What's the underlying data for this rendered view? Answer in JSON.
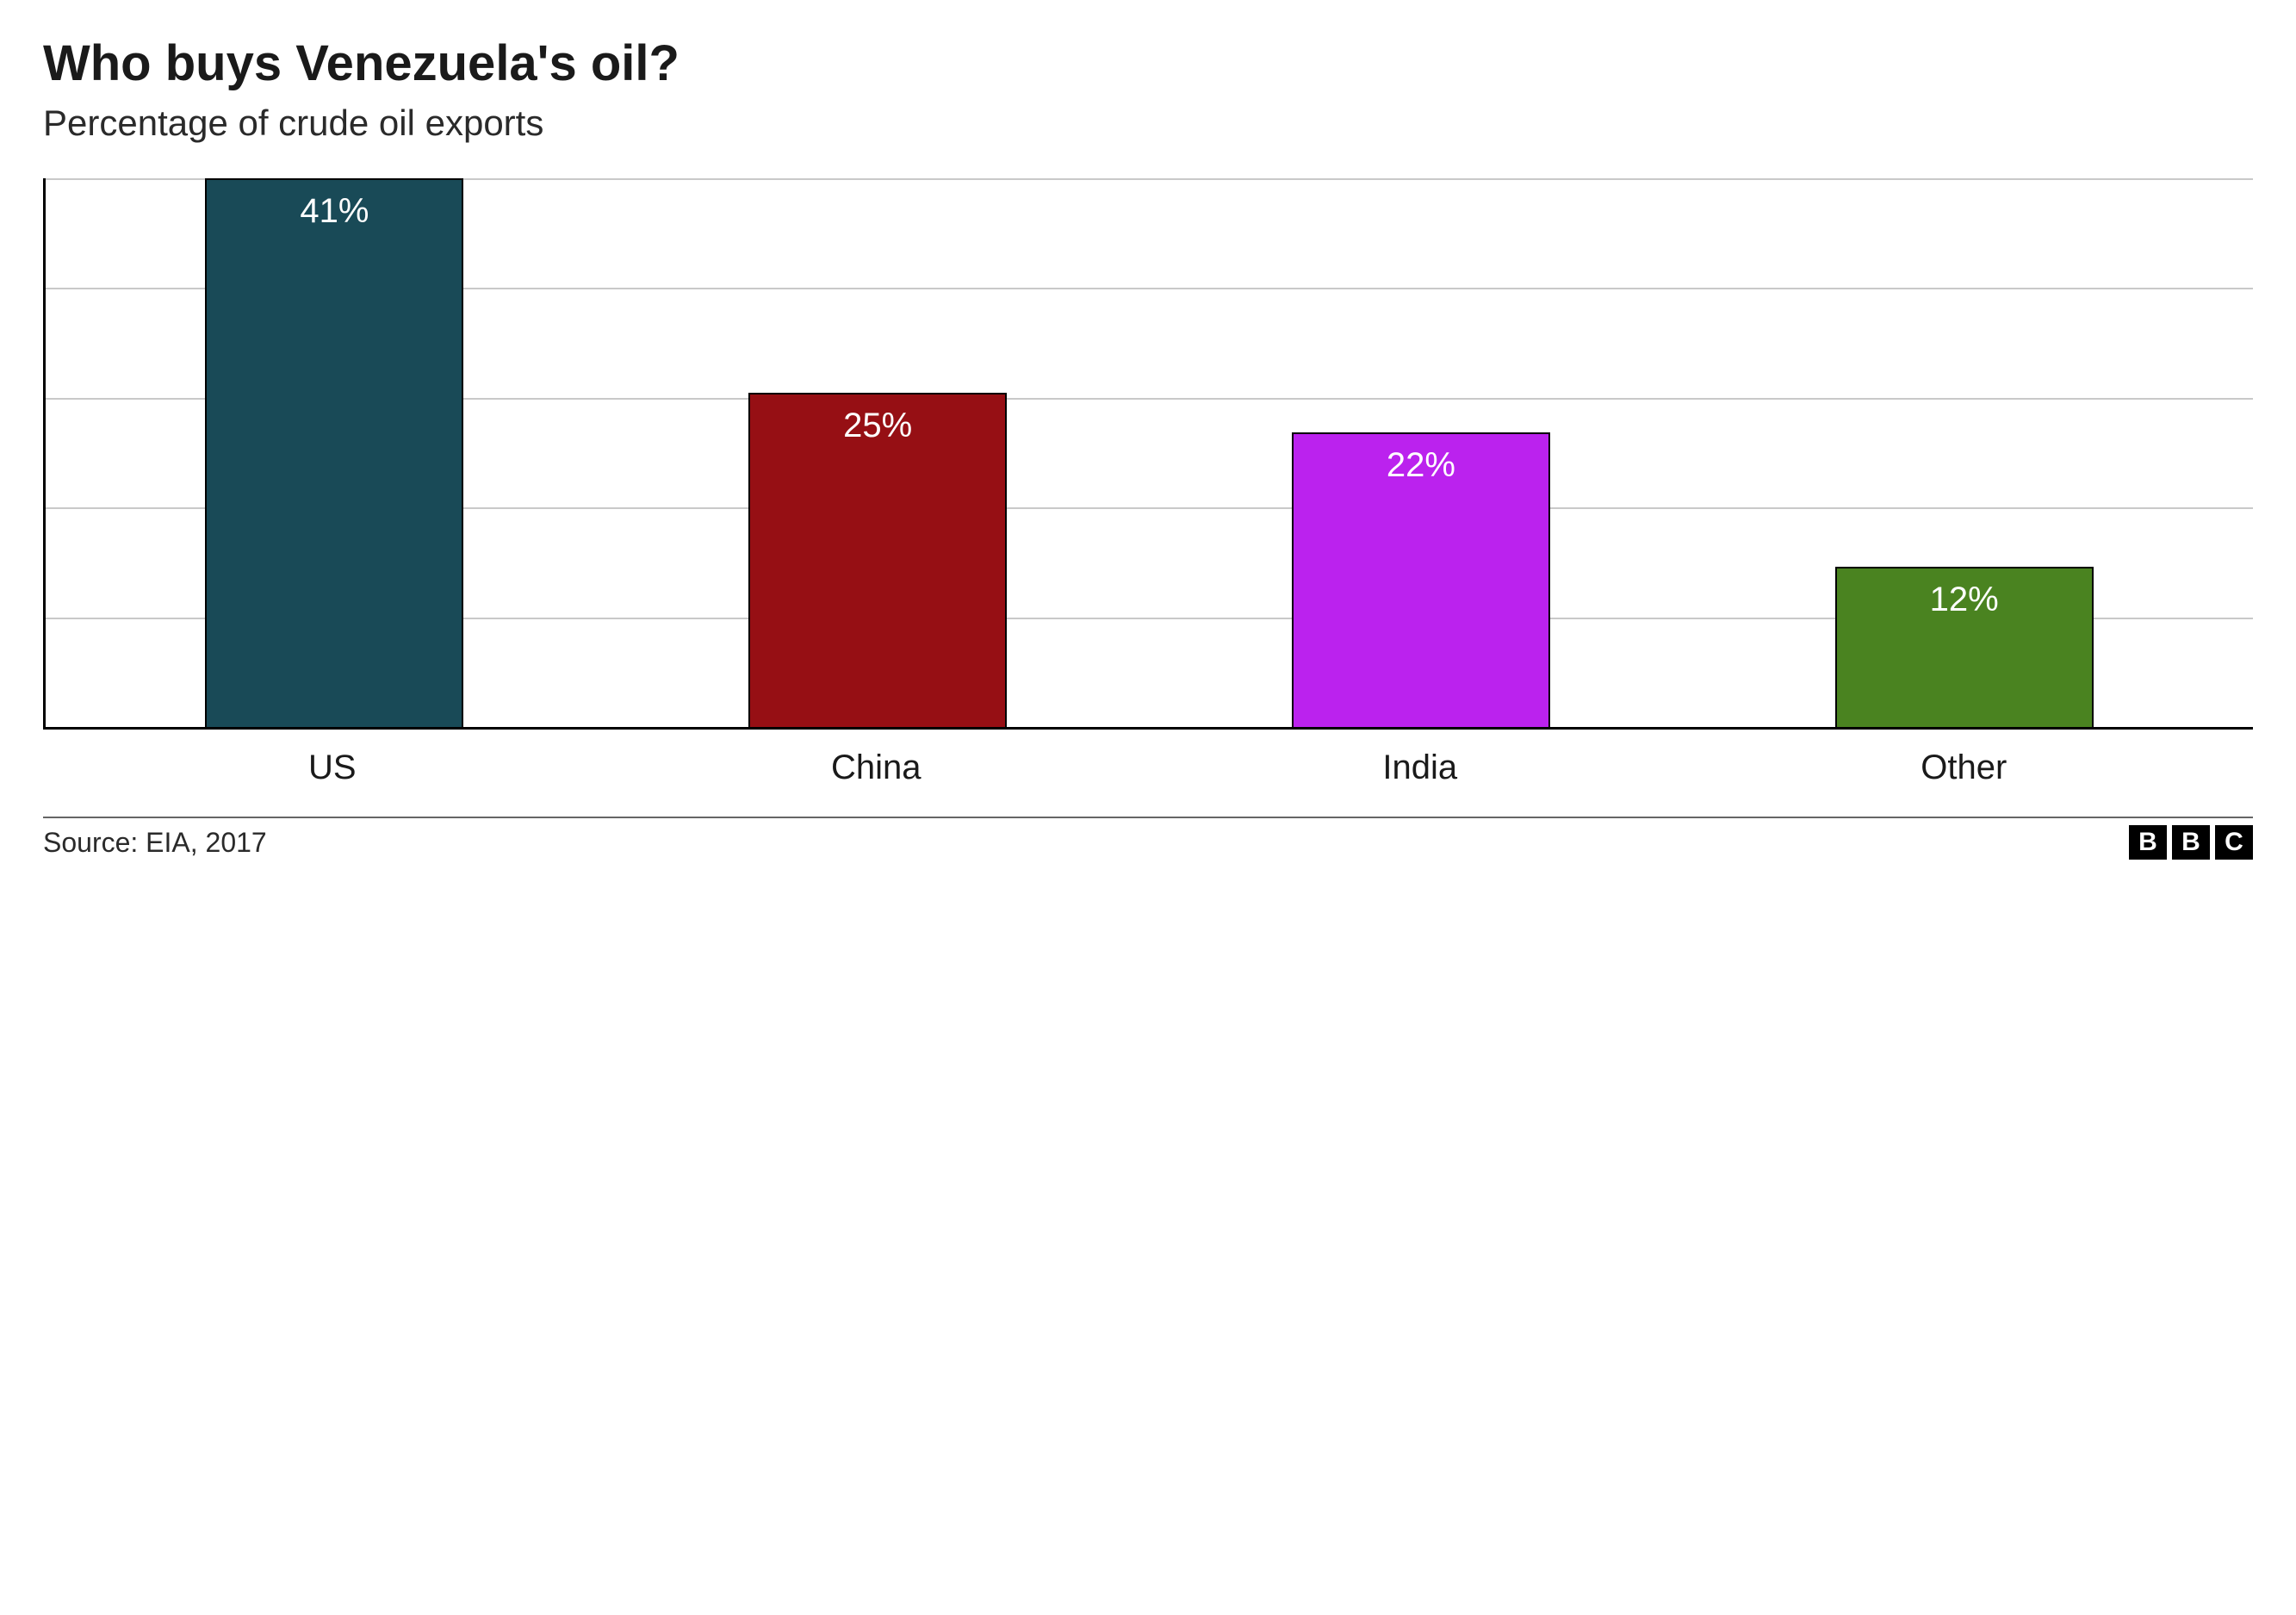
{
  "title": "Who buys Venezuela's oil?",
  "subtitle": "Percentage of crude oil exports",
  "source": "Source: EIA, 2017",
  "logo_letters": [
    "B",
    "B",
    "C"
  ],
  "chart": {
    "type": "bar",
    "ymax": 41,
    "grid_positions_pct": [
      0,
      20,
      40,
      60,
      80
    ],
    "grid_color": "#c9c9c9",
    "axis_color": "#000000",
    "background_color": "#ffffff",
    "title_fontsize": 58,
    "subtitle_fontsize": 42,
    "axis_label_fontsize": 40,
    "bar_label_fontsize": 40,
    "bar_label_color": "#ffffff",
    "bar_width_ratio": 0.78,
    "bars": [
      {
        "category": "US",
        "value": 41,
        "label": "41%",
        "color": "#194a57"
      },
      {
        "category": "China",
        "value": 25,
        "label": "25%",
        "color": "#960f14"
      },
      {
        "category": "India",
        "value": 22,
        "label": "22%",
        "color": "#bb22ee"
      },
      {
        "category": "Other",
        "value": 12,
        "label": "12%",
        "color": "#4a8320"
      }
    ]
  }
}
